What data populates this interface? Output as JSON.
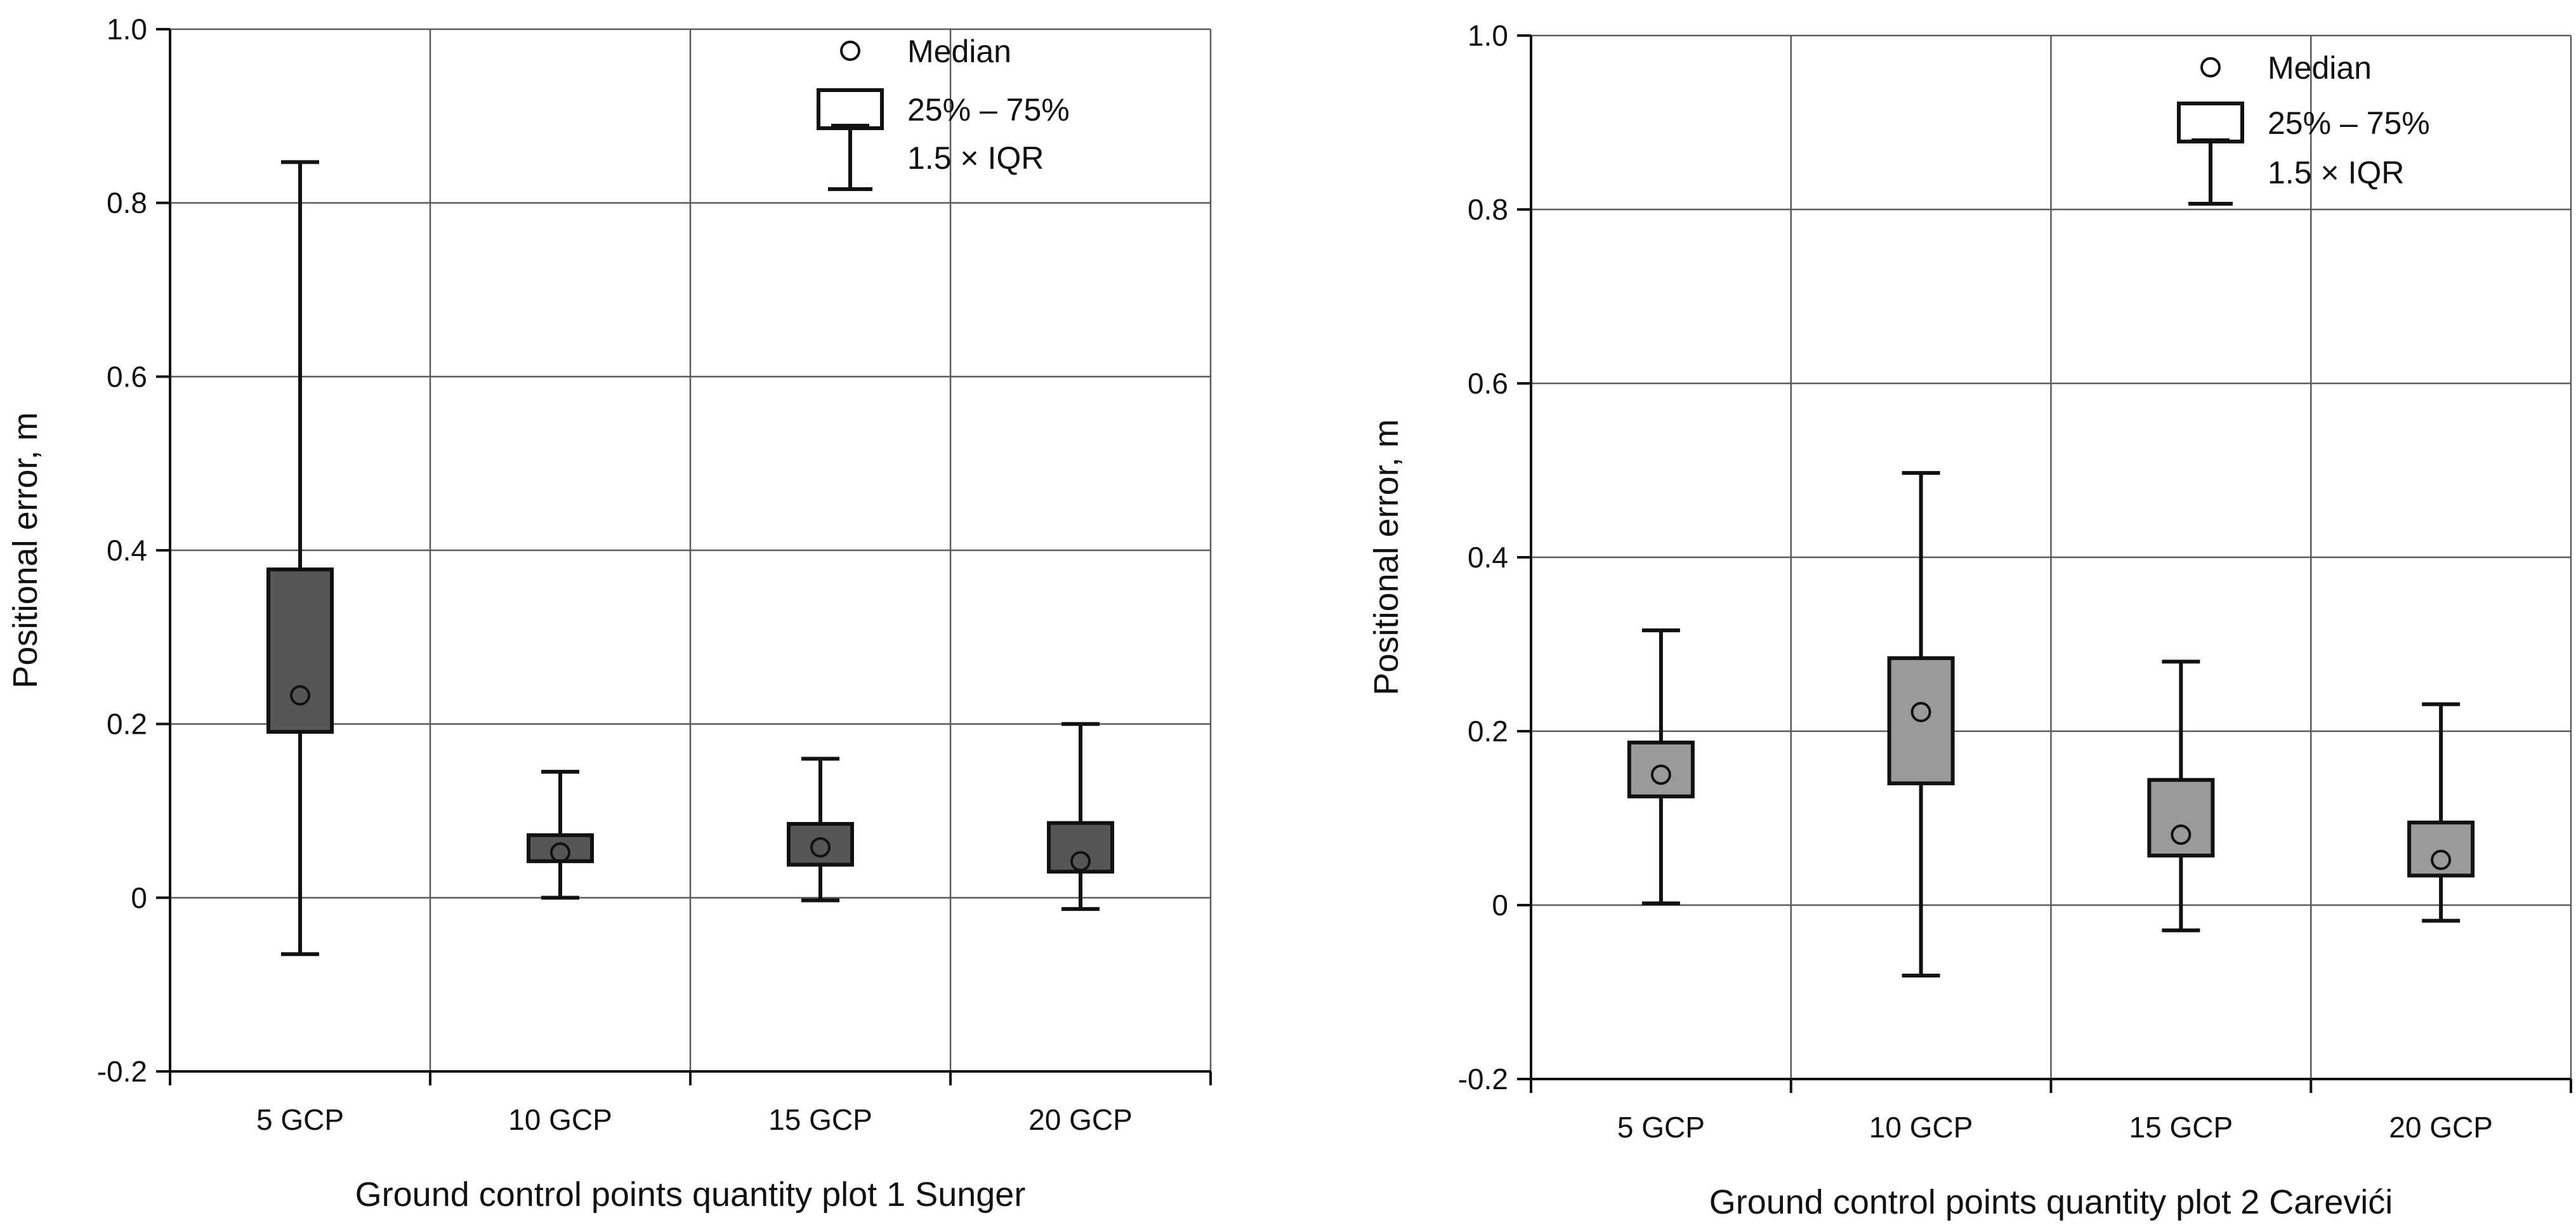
{
  "chart_data": [
    {
      "type": "boxplot",
      "title": "",
      "xlabel": "Ground control points quantity plot 1 Sunger",
      "ylabel": "Positional error, m",
      "ylim": [
        -0.2,
        1.0
      ],
      "yticks": [
        -0.2,
        0,
        0.2,
        0.4,
        0.6,
        0.8,
        1.0
      ],
      "ytick_labels": [
        "-0.2",
        "0",
        "0.2",
        "0.4",
        "0.6",
        "0.8",
        "1.0"
      ],
      "grid": true,
      "box_color": "#565656",
      "categories": [
        "5 GCP",
        "10 GCP",
        "15 GCP",
        "20 GCP"
      ],
      "boxes": [
        {
          "category": "5 GCP",
          "median": 0.233,
          "q1": 0.191,
          "q3": 0.378,
          "whisker_low": -0.065,
          "whisker_high": 0.847
        },
        {
          "category": "10 GCP",
          "median": 0.052,
          "q1": 0.042,
          "q3": 0.072,
          "whisker_low": 0.0,
          "whisker_high": 0.145
        },
        {
          "category": "15 GCP",
          "median": 0.058,
          "q1": 0.038,
          "q3": 0.085,
          "whisker_low": -0.003,
          "whisker_high": 0.16
        },
        {
          "category": "20 GCP",
          "median": 0.042,
          "q1": 0.03,
          "q3": 0.086,
          "whisker_low": -0.013,
          "whisker_high": 0.2
        }
      ],
      "legend": {
        "position": "top-right",
        "median": "Median",
        "box": "25% – 75%",
        "whisker": "1.5 × IQR"
      }
    },
    {
      "type": "boxplot",
      "title": "",
      "xlabel": "Ground control points quantity plot 2 Carevići",
      "ylabel": "Positional error, m",
      "ylim": [
        -0.2,
        1.0
      ],
      "yticks": [
        -0.2,
        0,
        0.2,
        0.4,
        0.6,
        0.8,
        1.0
      ],
      "ytick_labels": [
        "-0.2",
        "0",
        "0.2",
        "0.4",
        "0.6",
        "0.8",
        "1.0"
      ],
      "grid": true,
      "box_color": "#9a9a9a",
      "categories": [
        "5 GCP",
        "10 GCP",
        "15 GCP",
        "20 GCP"
      ],
      "boxes": [
        {
          "category": "5 GCP",
          "median": 0.15,
          "q1": 0.125,
          "q3": 0.187,
          "whisker_low": 0.002,
          "whisker_high": 0.316
        },
        {
          "category": "10 GCP",
          "median": 0.222,
          "q1": 0.14,
          "q3": 0.284,
          "whisker_low": -0.081,
          "whisker_high": 0.497
        },
        {
          "category": "15 GCP",
          "median": 0.081,
          "q1": 0.057,
          "q3": 0.144,
          "whisker_low": -0.029,
          "whisker_high": 0.28
        },
        {
          "category": "20 GCP",
          "median": 0.052,
          "q1": 0.034,
          "q3": 0.095,
          "whisker_low": -0.018,
          "whisker_high": 0.231
        }
      ],
      "legend": {
        "position": "top-right",
        "median": "Median",
        "box": "25% – 75%",
        "whisker": "1.5 × IQR"
      }
    }
  ]
}
